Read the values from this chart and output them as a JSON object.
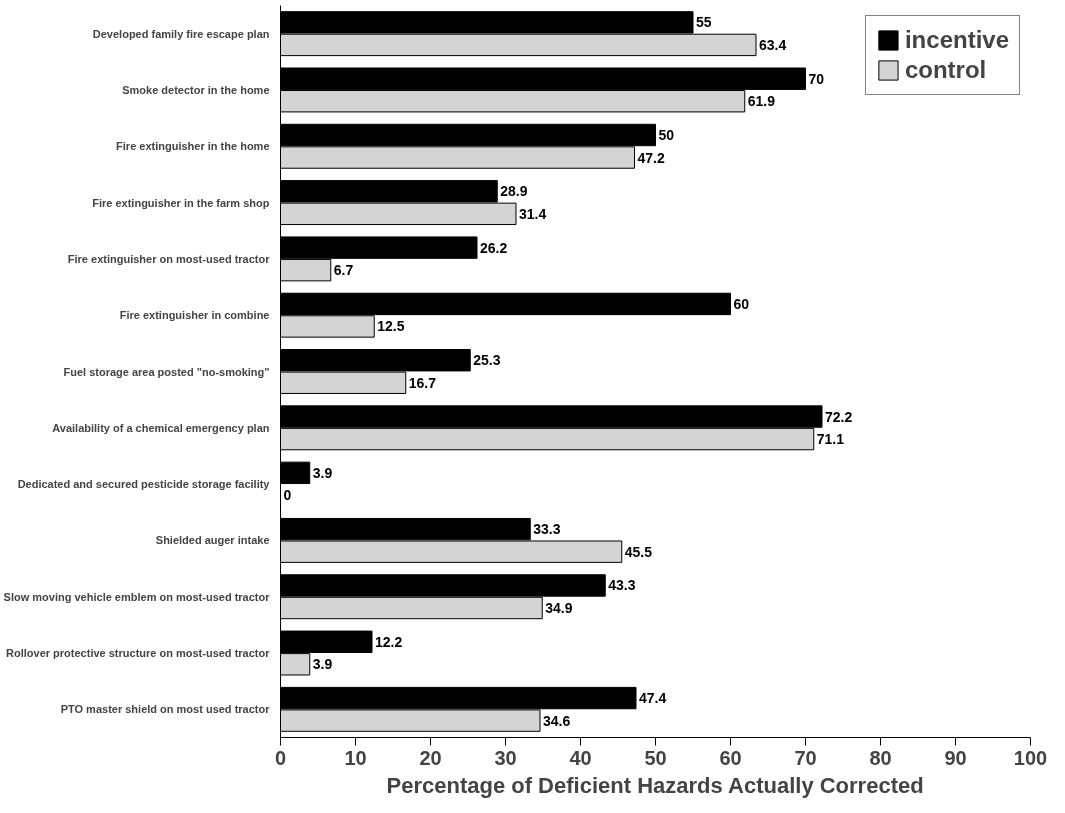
{
  "chart_data": {
    "type": "bar",
    "orientation": "horizontal",
    "xlabel": "Percentage of Deficient Hazards Actually Corrected",
    "categories": [
      "Developed family fire escape plan",
      "Smoke detector in the home",
      "Fire extinguisher in the home",
      "Fire extinguisher in the farm shop",
      "Fire extinguisher on most-used tractor",
      "Fire extinguisher in combine",
      "Fuel storage area posted \"no-smoking\"",
      "Availability of a chemical emergency plan",
      "Dedicated and secured pesticide storage facility",
      "Shielded auger intake",
      "Slow moving vehicle emblem on most-used tractor",
      "Rollover protective structure on most-used tractor",
      "PTO master shield on most used tractor"
    ],
    "series": [
      {
        "name": "incentive",
        "color": "#000000",
        "values": [
          55,
          70,
          50,
          28.9,
          26.2,
          60,
          25.3,
          72.2,
          3.9,
          33.3,
          43.3,
          12.2,
          47.4
        ]
      },
      {
        "name": "control",
        "color": "#d4d4d4",
        "values": [
          63.4,
          61.9,
          47.2,
          31.4,
          6.7,
          12.5,
          16.7,
          71.1,
          0,
          45.5,
          34.9,
          3.9,
          34.6
        ]
      }
    ],
    "xlim": [
      0,
      100
    ],
    "xticks": [
      0,
      10,
      20,
      30,
      40,
      50,
      60,
      70,
      80,
      90,
      100
    ],
    "data_labels": true,
    "legend": "top right",
    "grid": false
  }
}
